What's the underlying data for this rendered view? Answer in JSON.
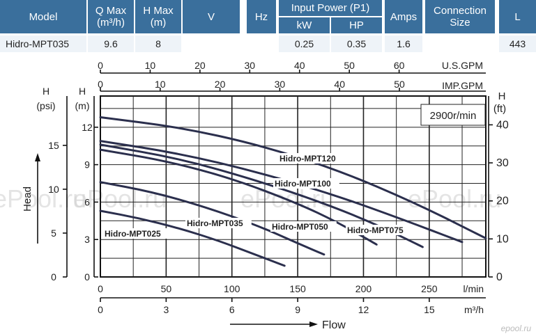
{
  "table": {
    "headers": [
      {
        "key": "model",
        "label": "Model"
      },
      {
        "key": "qmax",
        "label": "Q Max",
        "label2": "(m³/h)"
      },
      {
        "key": "hmax",
        "label": "H Max",
        "label2": "(m)"
      },
      {
        "key": "v",
        "label": "V"
      },
      {
        "key": "hz",
        "label": "Hz"
      },
      {
        "key": "power",
        "label": "Input Power (P1)",
        "sub": [
          "kW",
          "HP"
        ]
      },
      {
        "key": "amps",
        "label": "Amps"
      },
      {
        "key": "conn",
        "label": "Connection",
        "label2": "Size"
      },
      {
        "key": "l",
        "label": "L"
      }
    ],
    "row": {
      "model": "Hidro-MPT035",
      "qmax": "9.6",
      "hmax": "8",
      "v": "",
      "hz": "",
      "kw": "0.25",
      "hp": "0.35",
      "amps": "1.6",
      "conn": "",
      "l": "443"
    }
  },
  "chart_data": {
    "type": "line",
    "speed_label": "2900r/min",
    "y_label": "Head",
    "x_label": "Flow",
    "axes": {
      "top_gpm": {
        "unit": "U.S.GPM",
        "ticks": [
          "0",
          "10",
          "20",
          "30",
          "40",
          "50",
          "60"
        ]
      },
      "top_imp": {
        "unit": "IMP.GPM",
        "ticks": [
          "0",
          "10",
          "20",
          "30",
          "40",
          "50"
        ]
      },
      "left_psi": {
        "unit": "H",
        "unit2": "(psi)",
        "ticks": [
          "0",
          "5",
          "10",
          "15"
        ]
      },
      "left_m": {
        "unit": "H",
        "unit2": "(m)",
        "ticks": [
          "0",
          "3",
          "6",
          "9",
          "12"
        ]
      },
      "right_ft": {
        "unit": "H",
        "unit2": "(ft)",
        "ticks": [
          "0",
          "10",
          "20",
          "30",
          "40"
        ]
      },
      "bottom_lmin": {
        "unit": "l/min",
        "ticks": [
          "0",
          "50",
          "100",
          "150",
          "200",
          "250"
        ]
      },
      "bottom_m3h": {
        "unit": "m³/h",
        "ticks": [
          "0",
          "3",
          "6",
          "9",
          "12",
          "15"
        ]
      }
    },
    "xlim": [
      0,
      293
    ],
    "ylim": [
      0,
      14.5
    ],
    "series": [
      {
        "name": "Hidro-MPT025",
        "points": [
          [
            0,
            5.3
          ],
          [
            30,
            4.7
          ],
          [
            60,
            3.9
          ],
          [
            90,
            2.9
          ],
          [
            115,
            1.9
          ],
          [
            140,
            0.9
          ]
        ]
      },
      {
        "name": "Hidro-MPT035",
        "points": [
          [
            0,
            7.6
          ],
          [
            40,
            6.8
          ],
          [
            80,
            5.6
          ],
          [
            120,
            4.1
          ],
          [
            150,
            2.7
          ],
          [
            170,
            1.8
          ]
        ]
      },
      {
        "name": "Hidro-MPT050",
        "points": [
          [
            0,
            10.2
          ],
          [
            50,
            9.3
          ],
          [
            100,
            7.9
          ],
          [
            150,
            5.9
          ],
          [
            180,
            4.4
          ],
          [
            210,
            2.6
          ]
        ]
      },
      {
        "name": "Hidro-MPT075",
        "points": [
          [
            0,
            10.6
          ],
          [
            60,
            9.5
          ],
          [
            120,
            7.7
          ],
          [
            170,
            5.9
          ],
          [
            210,
            4.2
          ],
          [
            245,
            2.4
          ]
        ]
      },
      {
        "name": "Hidro-MPT100",
        "points": [
          [
            0,
            10.9
          ],
          [
            60,
            9.9
          ],
          [
            120,
            8.4
          ],
          [
            180,
            6.5
          ],
          [
            230,
            4.6
          ],
          [
            275,
            2.8
          ]
        ]
      },
      {
        "name": "Hidro-MPT120",
        "points": [
          [
            0,
            12.8
          ],
          [
            60,
            12.0
          ],
          [
            120,
            10.6
          ],
          [
            180,
            8.6
          ],
          [
            240,
            5.9
          ],
          [
            293,
            3.1
          ]
        ]
      }
    ]
  },
  "watermark": {
    "text": "ePool.ru",
    "logo": "epool.ru"
  }
}
